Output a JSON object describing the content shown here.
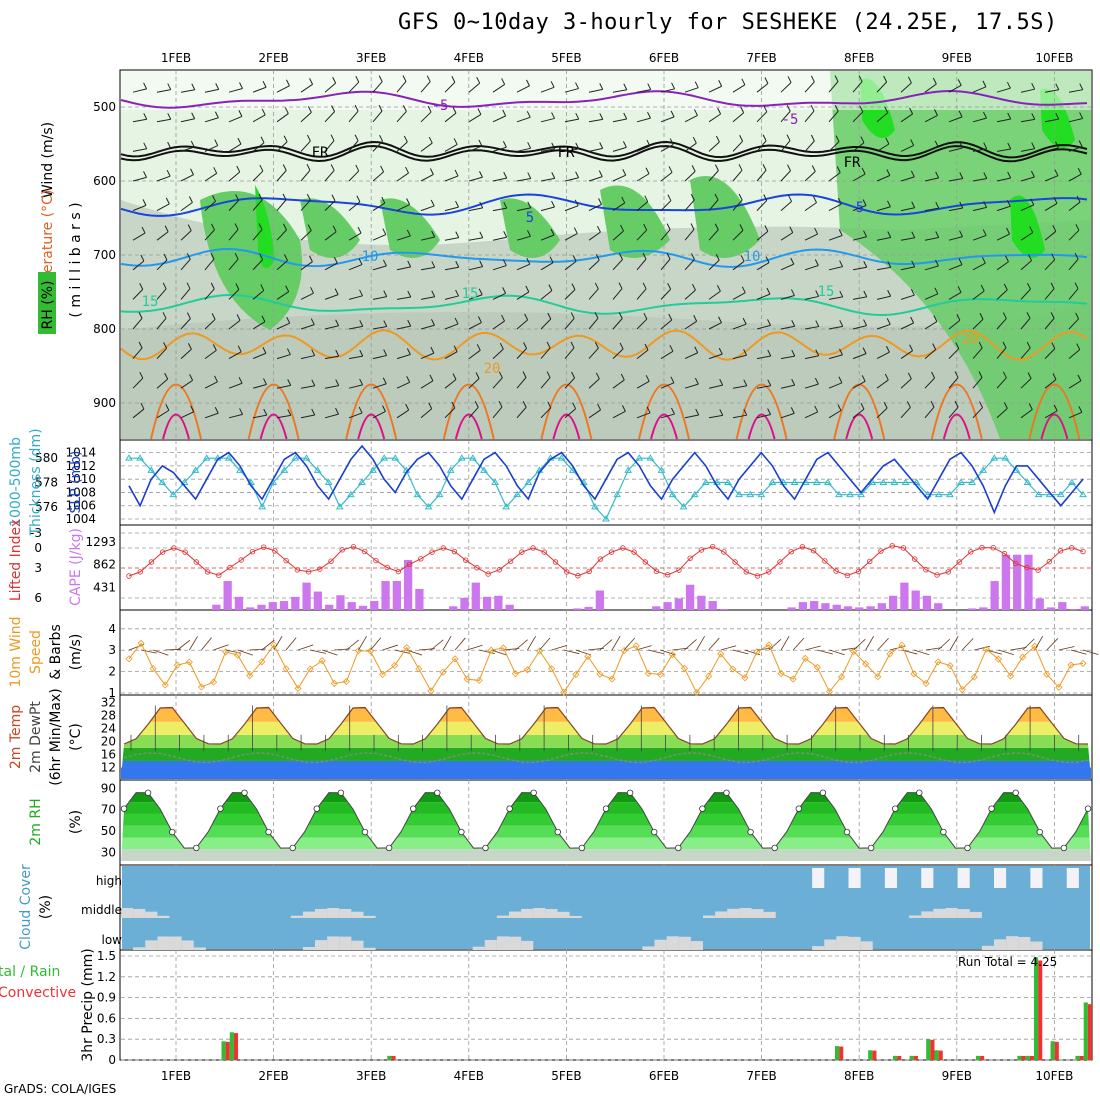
{
  "title": "GFS 0~10day 3-hourly for SESHEKE (24.25E, 17.5S)",
  "credit": "GrADS: COLA/IGES",
  "colors": {
    "rh_light": "#e6f4e4",
    "rh_mid": "#c8d6c8",
    "rh_green": "#66cc66",
    "rh_bright": "#22dd22",
    "cloud_bg": "#6bafd6",
    "cloud_fill": "#d9d9d9",
    "precip_total": "#33bb33",
    "precip_conv": "#ee3333",
    "slp": "#1a3fcf",
    "thickness": "#33bbcc",
    "lifted_index": "#dd3333",
    "cape": "#cc77ee",
    "wind10": "#ee9922",
    "temp_line": "#884422",
    "dewpt": "#888888",
    "rh2m": "#22aa22"
  },
  "x_axis": {
    "date_labels": [
      "1FEB",
      "2FEB",
      "3FEB",
      "4FEB",
      "5FEB",
      "6FEB",
      "7FEB",
      "8FEB",
      "9FEB",
      "10FEB"
    ]
  },
  "panels": {
    "sounding": {
      "label_wind": "Wind (m/s)",
      "label_temp": "Temperature (°C)",
      "label_rh": "RH (%)",
      "label_mb": "( m i l l i b a r s )",
      "yticks": [
        500,
        600,
        700,
        800,
        900
      ],
      "contour_labels": [
        "-5",
        "-5",
        "5",
        "5",
        "FR",
        "FR",
        "FR",
        "10",
        "10",
        "15",
        "15",
        "15",
        "20",
        "20"
      ]
    },
    "pressure": {
      "label_thick": "Thickness (dm)",
      "label_thick2": "1000-500mb",
      "label_slp": "SLP (mb)",
      "yticks_left": [
        "580",
        "578",
        "576"
      ],
      "yticks_right": [
        "1014",
        "1012",
        "1010",
        "1008",
        "1006",
        "1004"
      ]
    },
    "instability": {
      "label_li": "Lifted Index",
      "label_cape": "CAPE (J/kg)",
      "yticks_li": [
        "-3",
        "0",
        "3",
        "6"
      ],
      "yticks_cape": [
        "1293",
        "862",
        "431"
      ]
    },
    "wind10m": {
      "label1": "10m Wind",
      "label2": "Speed",
      "label3": "& Barbs",
      "label4": "(m/s)",
      "yticks": [
        "4",
        "3",
        "2",
        "1"
      ]
    },
    "temp2m": {
      "label1": "2m Temp",
      "label2": "2m DewPt",
      "label3": "(6hr Min/Max)",
      "label4": "(°C)",
      "yticks": [
        "32",
        "28",
        "24",
        "20",
        "16",
        "12"
      ]
    },
    "rh2m": {
      "label1": "2m RH",
      "label2": "(%)",
      "yticks": [
        "90",
        "70",
        "50",
        "30"
      ]
    },
    "cloud": {
      "label1": "Cloud Cover",
      "label2": "(%)",
      "levels": [
        "high",
        "middle",
        "low"
      ]
    },
    "precip": {
      "label1": "tal / Rain",
      "label2": "Convective",
      "label3": "3hr Precip (mm)",
      "run_total": "Run Total =  4.25",
      "yticks": [
        "1.5",
        "1.2",
        "0.9",
        "0.6",
        "0.3",
        "0"
      ]
    }
  },
  "chart_data": [
    {
      "type": "line",
      "title": "SLP (mb)",
      "ylim": [
        1004,
        1015
      ],
      "values": [
        1009,
        1006,
        1010,
        1012,
        1011,
        1009,
        1007,
        1010,
        1013,
        1014,
        1012,
        1009,
        1007,
        1010,
        1013,
        1014,
        1012,
        1009,
        1007,
        1010,
        1013,
        1015,
        1013,
        1010,
        1008,
        1011,
        1013,
        1014,
        1012,
        1009,
        1007,
        1010,
        1013,
        1014,
        1012,
        1009,
        1007,
        1011,
        1013,
        1014,
        1012,
        1009,
        1007,
        1010,
        1013,
        1014,
        1012,
        1009,
        1007,
        1010,
        1012,
        1014,
        1012,
        1009,
        1007,
        1010,
        1012,
        1014,
        1012,
        1009,
        1007,
        1010,
        1013,
        1014,
        1012,
        1010,
        1008,
        1010,
        1012,
        1013,
        1011,
        1009,
        1007,
        1010,
        1013,
        1014,
        1012,
        1009,
        1005,
        1009,
        1012,
        1012,
        1010,
        1008,
        1006,
        1008,
        1010
      ]
    },
    {
      "type": "line",
      "title": "Thickness (dm)",
      "ylim": [
        575,
        581
      ],
      "values": [
        580,
        580,
        579,
        578,
        577,
        578,
        579,
        580,
        580,
        580,
        579,
        578,
        576,
        578,
        579,
        580,
        580,
        579,
        578,
        576,
        577,
        578,
        579,
        580,
        580,
        579,
        577,
        576,
        577,
        579,
        580,
        580,
        579,
        578,
        576,
        577,
        578,
        579,
        580,
        580,
        579,
        578,
        576,
        575,
        577,
        579,
        580,
        580,
        579,
        577,
        576,
        577,
        578,
        578,
        578,
        577,
        577,
        577,
        578,
        578,
        578,
        578,
        578,
        578,
        577,
        577,
        577,
        578,
        578,
        578,
        578,
        578,
        577,
        577,
        577,
        578,
        578,
        579,
        580,
        580,
        579,
        578,
        577,
        577,
        577,
        578,
        577
      ]
    },
    {
      "type": "bar",
      "title": "CAPE (J/kg)",
      "ylim": [
        0,
        1500
      ],
      "values": [
        0,
        0,
        0,
        0,
        0,
        0,
        0,
        0,
        100,
        550,
        250,
        50,
        100,
        150,
        170,
        250,
        520,
        350,
        100,
        280,
        150,
        80,
        170,
        550,
        550,
        950,
        400,
        0,
        0,
        70,
        230,
        520,
        250,
        270,
        100,
        0,
        0,
        0,
        0,
        0,
        30,
        60,
        370,
        0,
        0,
        0,
        0,
        70,
        150,
        220,
        480,
        270,
        170,
        20,
        0,
        0,
        0,
        0,
        0,
        50,
        150,
        170,
        130,
        100,
        70,
        50,
        70,
        130,
        270,
        520,
        370,
        270,
        130,
        0,
        0,
        30,
        50,
        550,
        1050,
        1050,
        1050,
        220,
        50,
        150,
        20,
        70
      ]
    },
    {
      "type": "bar",
      "title": "3hr Precip (mm)",
      "ylim": [
        0,
        1.5
      ],
      "values": [
        0,
        0,
        0,
        0,
        0,
        0,
        0,
        0,
        0,
        0,
        0,
        0,
        0.27,
        0.4,
        0,
        0,
        0,
        0,
        0,
        0,
        0,
        0,
        0,
        0,
        0,
        0,
        0,
        0,
        0,
        0,
        0,
        0,
        0.06,
        0,
        0,
        0,
        0,
        0,
        0,
        0,
        0,
        0,
        0,
        0,
        0,
        0,
        0,
        0,
        0,
        0,
        0,
        0,
        0,
        0,
        0,
        0,
        0,
        0,
        0,
        0,
        0,
        0,
        0,
        0,
        0,
        0,
        0,
        0,
        0,
        0,
        0,
        0,
        0,
        0,
        0,
        0,
        0,
        0,
        0,
        0,
        0,
        0,
        0,
        0,
        0,
        0,
        0.2,
        0,
        0,
        0,
        0.14,
        0,
        0,
        0.06,
        0,
        0.06,
        0,
        0.3,
        0.14,
        0,
        0,
        0,
        0,
        0.06,
        0,
        0,
        0,
        0,
        0.06,
        0.06,
        1.48,
        0,
        0.27,
        0,
        0,
        0.06,
        0.83
      ]
    }
  ]
}
